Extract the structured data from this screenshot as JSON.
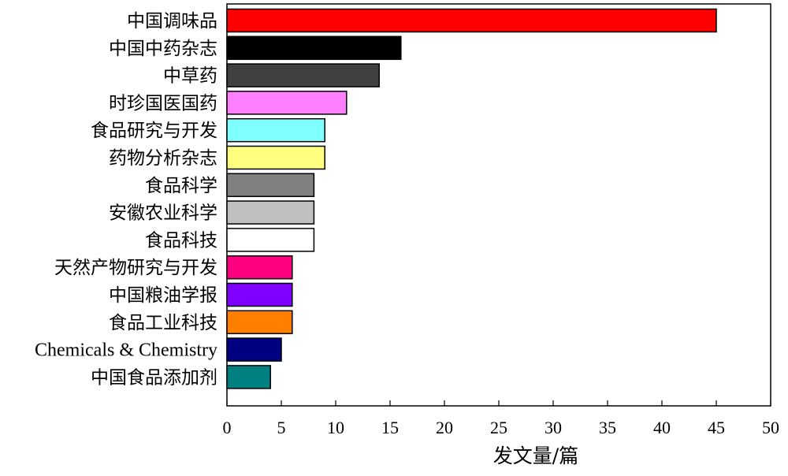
{
  "chart_data": {
    "type": "bar",
    "orientation": "horizontal",
    "title": "",
    "xlabel": "发文量/篇",
    "ylabel": "",
    "xlim": [
      0,
      50
    ],
    "xticks": [
      0,
      5,
      10,
      15,
      20,
      25,
      30,
      35,
      40,
      45,
      50
    ],
    "grid": false,
    "categories": [
      "中国调味品",
      "中国中药杂志",
      "中草药",
      "时珍国医国药",
      "食品研究与开发",
      "药物分析杂志",
      "食品科学",
      "安徽农业科学",
      "食品科技",
      "天然产物研究与开发",
      "中国粮油学报",
      "食品工业科技",
      "Chemicals & Chemistry",
      "中国食品添加剂"
    ],
    "values": [
      45,
      16,
      14,
      11,
      9,
      9,
      8,
      8,
      8,
      6,
      6,
      6,
      5,
      4
    ],
    "colors": [
      "#ff0000",
      "#000000",
      "#404040",
      "#ff80ff",
      "#80ffff",
      "#ffff80",
      "#808080",
      "#c0c0c0",
      "#ffffff",
      "#ff0080",
      "#8000ff",
      "#ff8000",
      "#000080",
      "#008080"
    ]
  }
}
